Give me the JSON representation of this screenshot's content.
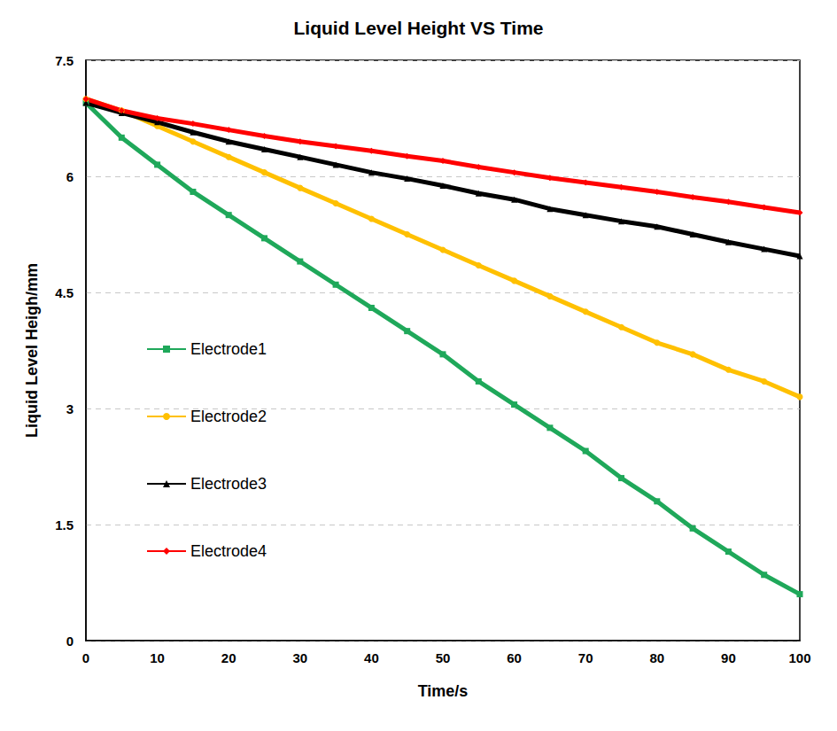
{
  "chart_data": {
    "type": "line",
    "title": "Liquid Level Height VS Time",
    "x_label": "Time/s",
    "y_label": "Liquid Level Heigh/mm",
    "x": [
      0,
      5,
      10,
      15,
      20,
      25,
      30,
      35,
      40,
      45,
      50,
      55,
      60,
      65,
      70,
      75,
      80,
      85,
      90,
      95,
      100
    ],
    "series": [
      {
        "name": "Electrode1",
        "color": "#1fa85a",
        "marker": "square",
        "values": [
          6.95,
          6.5,
          6.15,
          5.8,
          5.5,
          5.2,
          4.9,
          4.6,
          4.3,
          4.0,
          3.7,
          3.35,
          3.05,
          2.75,
          2.45,
          2.1,
          1.8,
          1.45,
          1.15,
          0.85,
          0.6
        ]
      },
      {
        "name": "Electrode2",
        "color": "#ffc000",
        "marker": "circle",
        "values": [
          7.0,
          6.85,
          6.65,
          6.45,
          6.25,
          6.05,
          5.85,
          5.65,
          5.45,
          5.25,
          5.05,
          4.85,
          4.65,
          4.45,
          4.25,
          4.05,
          3.85,
          3.7,
          3.5,
          3.35,
          3.15
        ]
      },
      {
        "name": "Electrode3",
        "color": "#000000",
        "marker": "triangle",
        "values": [
          6.95,
          6.82,
          6.7,
          6.57,
          6.45,
          6.35,
          6.25,
          6.15,
          6.05,
          5.97,
          5.88,
          5.78,
          5.7,
          5.58,
          5.5,
          5.42,
          5.35,
          5.25,
          5.15,
          5.06,
          4.97
        ]
      },
      {
        "name": "Electrode4",
        "color": "#ff0000",
        "marker": "diamond",
        "values": [
          7.0,
          6.85,
          6.75,
          6.68,
          6.6,
          6.52,
          6.45,
          6.39,
          6.33,
          6.26,
          6.2,
          6.12,
          6.05,
          5.98,
          5.92,
          5.86,
          5.8,
          5.73,
          5.67,
          5.6,
          5.53
        ]
      }
    ],
    "xlim": [
      0,
      100
    ],
    "xticks": [
      0,
      10,
      20,
      30,
      40,
      50,
      60,
      70,
      80,
      90,
      100
    ],
    "ylim": [
      0,
      7.5
    ],
    "yticks": [
      0,
      1.5,
      3,
      4.5,
      6,
      7.5
    ],
    "grid": "y",
    "legend": "left"
  }
}
